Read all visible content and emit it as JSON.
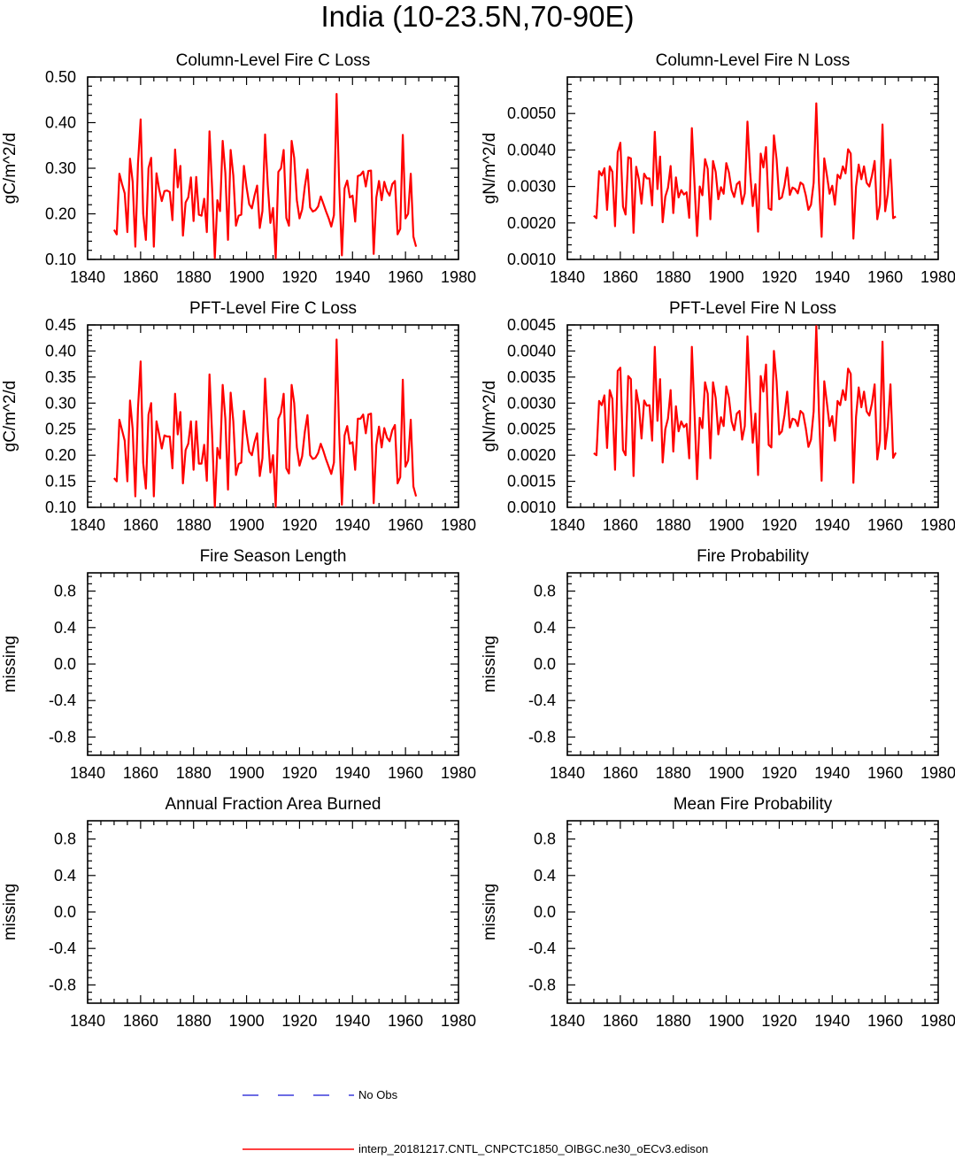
{
  "page": {
    "title": "India (10-23.5N,70-90E)"
  },
  "chart_data": [
    {
      "type": "line",
      "title": "Column-Level Fire C Loss",
      "ylabel": "gC/m^2/d",
      "xlim": [
        1840,
        1980
      ],
      "ylim": [
        0.1,
        0.5
      ],
      "xticks": [
        "1840",
        "1860",
        "1880",
        "1900",
        "1920",
        "1940",
        "1960",
        "1980"
      ],
      "yticks": [
        "0.10",
        "0.20",
        "0.30",
        "0.40",
        "0.50"
      ],
      "x_start": 1850,
      "series": [
        {
          "color": "#ff0000",
          "values": [
            0.165,
            0.155,
            0.288,
            0.265,
            0.245,
            0.16,
            0.321,
            0.27,
            0.128,
            0.31,
            0.407,
            0.2,
            0.143,
            0.3,
            0.323,
            0.128,
            0.289,
            0.254,
            0.228,
            0.25,
            0.251,
            0.248,
            0.186,
            0.341,
            0.258,
            0.305,
            0.152,
            0.225,
            0.236,
            0.28,
            0.184,
            0.281,
            0.198,
            0.196,
            0.233,
            0.16,
            0.381,
            0.254,
            0.103,
            0.23,
            0.206,
            0.36,
            0.29,
            0.143,
            0.34,
            0.284,
            0.174,
            0.196,
            0.198,
            0.305,
            0.258,
            0.221,
            0.212,
            0.24,
            0.262,
            0.169,
            0.206,
            0.374,
            0.264,
            0.18,
            0.213,
            0.103,
            0.292,
            0.3,
            0.34,
            0.191,
            0.174,
            0.36,
            0.323,
            0.23,
            0.19,
            0.21,
            0.26,
            0.297,
            0.214,
            0.205,
            0.208,
            0.216,
            0.238,
            0.222,
            0.205,
            0.19,
            0.172,
            0.197,
            0.463,
            0.26,
            0.109,
            0.256,
            0.273,
            0.236,
            0.24,
            0.183,
            0.283,
            0.285,
            0.293,
            0.26,
            0.294,
            0.295,
            0.112,
            0.236,
            0.272,
            0.23,
            0.27,
            0.25,
            0.24,
            0.265,
            0.272,
            0.155,
            0.167,
            0.373,
            0.19,
            0.2,
            0.288,
            0.15,
            0.128
          ]
        }
      ]
    },
    {
      "type": "line",
      "title": "Column-Level Fire N Loss",
      "ylabel": "gN/m^2/d",
      "xlim": [
        1840,
        1980
      ],
      "ylim": [
        0.001,
        0.006
      ],
      "xticks": [
        "1840",
        "1860",
        "1880",
        "1900",
        "1920",
        "1940",
        "1960",
        "1980"
      ],
      "yticks": [
        "0.0010",
        "0.0020",
        "0.0030",
        "0.0040",
        "0.0050"
      ],
      "x_start": 1850,
      "series": [
        {
          "color": "#ff0000",
          "values": [
            0.0022,
            0.00213,
            0.00342,
            0.0033,
            0.0035,
            0.00236,
            0.00355,
            0.0034,
            0.00191,
            0.00394,
            0.0042,
            0.00245,
            0.00223,
            0.0038,
            0.00377,
            0.00173,
            0.00354,
            0.0032,
            0.00253,
            0.00335,
            0.00322,
            0.00322,
            0.00248,
            0.0045,
            0.00293,
            0.00382,
            0.00202,
            0.00272,
            0.00296,
            0.00356,
            0.00227,
            0.00325,
            0.0027,
            0.0029,
            0.00278,
            0.00284,
            0.00214,
            0.0046,
            0.00306,
            0.00164,
            0.003,
            0.00276,
            0.00375,
            0.00348,
            0.0021,
            0.0037,
            0.0034,
            0.00265,
            0.00298,
            0.0028,
            0.00364,
            0.00338,
            0.0029,
            0.00271,
            0.00306,
            0.00313,
            0.00252,
            0.00281,
            0.00478,
            0.0034,
            0.00246,
            0.00306,
            0.00176,
            0.0039,
            0.00352,
            0.00408,
            0.0024,
            0.00236,
            0.0044,
            0.00375,
            0.00265,
            0.0027,
            0.00303,
            0.00352,
            0.00277,
            0.00297,
            0.00293,
            0.00281,
            0.00311,
            0.00305,
            0.00276,
            0.00236,
            0.0025,
            0.0031,
            0.00528,
            0.0031,
            0.00162,
            0.00377,
            0.0033,
            0.0028,
            0.00302,
            0.0025,
            0.00332,
            0.00322,
            0.00355,
            0.00336,
            0.00402,
            0.0039,
            0.00157,
            0.003,
            0.0036,
            0.0032,
            0.00355,
            0.0031,
            0.003,
            0.0033,
            0.0037,
            0.0021,
            0.0025,
            0.0047,
            0.00232,
            0.0028,
            0.00373,
            0.00213,
            0.00218
          ]
        }
      ]
    },
    {
      "type": "line",
      "title": "PFT-Level Fire C Loss",
      "ylabel": "gC/m^2/d",
      "xlim": [
        1840,
        1980
      ],
      "ylim": [
        0.1,
        0.45
      ],
      "xticks": [
        "1840",
        "1860",
        "1880",
        "1900",
        "1920",
        "1940",
        "1960",
        "1980"
      ],
      "yticks": [
        "0.10",
        "0.15",
        "0.20",
        "0.25",
        "0.30",
        "0.35",
        "0.40",
        "0.45"
      ],
      "x_start": 1850,
      "series": [
        {
          "color": "#ff0000",
          "values": [
            0.156,
            0.15,
            0.268,
            0.248,
            0.228,
            0.15,
            0.305,
            0.25,
            0.121,
            0.29,
            0.38,
            0.185,
            0.136,
            0.278,
            0.3,
            0.121,
            0.265,
            0.24,
            0.213,
            0.238,
            0.236,
            0.236,
            0.175,
            0.318,
            0.24,
            0.283,
            0.146,
            0.21,
            0.222,
            0.265,
            0.172,
            0.265,
            0.184,
            0.184,
            0.22,
            0.151,
            0.355,
            0.238,
            0.101,
            0.214,
            0.194,
            0.335,
            0.27,
            0.134,
            0.32,
            0.265,
            0.162,
            0.183,
            0.186,
            0.285,
            0.242,
            0.207,
            0.2,
            0.225,
            0.242,
            0.16,
            0.194,
            0.347,
            0.246,
            0.167,
            0.2,
            0.101,
            0.27,
            0.282,
            0.318,
            0.175,
            0.165,
            0.335,
            0.3,
            0.215,
            0.18,
            0.198,
            0.245,
            0.277,
            0.2,
            0.193,
            0.195,
            0.204,
            0.222,
            0.208,
            0.192,
            0.178,
            0.164,
            0.186,
            0.422,
            0.24,
            0.105,
            0.238,
            0.256,
            0.222,
            0.225,
            0.172,
            0.27,
            0.27,
            0.278,
            0.242,
            0.278,
            0.28,
            0.108,
            0.22,
            0.255,
            0.215,
            0.252,
            0.234,
            0.227,
            0.248,
            0.258,
            0.146,
            0.158,
            0.345,
            0.178,
            0.19,
            0.268,
            0.14,
            0.121
          ]
        }
      ]
    },
    {
      "type": "line",
      "title": "PFT-Level Fire N Loss",
      "ylabel": "gN/m^2/d",
      "xlim": [
        1840,
        1980
      ],
      "ylim": [
        0.001,
        0.0045
      ],
      "xticks": [
        "1840",
        "1860",
        "1880",
        "1900",
        "1920",
        "1940",
        "1960",
        "1980"
      ],
      "yticks": [
        "0.0010",
        "0.0015",
        "0.0020",
        "0.0025",
        "0.0030",
        "0.0035",
        "0.0040",
        "0.0045"
      ],
      "x_start": 1850,
      "series": [
        {
          "color": "#ff0000",
          "values": [
            0.00204,
            0.002,
            0.00304,
            0.00296,
            0.00315,
            0.00214,
            0.00325,
            0.00308,
            0.00172,
            0.00362,
            0.00368,
            0.0021,
            0.002,
            0.00352,
            0.00346,
            0.0016,
            0.00325,
            0.00296,
            0.00232,
            0.00305,
            0.00295,
            0.00296,
            0.00228,
            0.00408,
            0.00266,
            0.00346,
            0.00186,
            0.0025,
            0.0027,
            0.00325,
            0.00207,
            0.00294,
            0.00246,
            0.00265,
            0.00254,
            0.0026,
            0.00194,
            0.00408,
            0.0028,
            0.00154,
            0.00272,
            0.00252,
            0.0034,
            0.00318,
            0.00194,
            0.0034,
            0.0031,
            0.0024,
            0.00273,
            0.00256,
            0.00332,
            0.0031,
            0.00265,
            0.00248,
            0.0028,
            0.00285,
            0.0023,
            0.00256,
            0.00428,
            0.0031,
            0.00224,
            0.0028,
            0.00162,
            0.00352,
            0.00322,
            0.00374,
            0.0022,
            0.00215,
            0.004,
            0.00342,
            0.0024,
            0.00246,
            0.00277,
            0.00322,
            0.00253,
            0.0027,
            0.00268,
            0.00256,
            0.00285,
            0.0028,
            0.00252,
            0.00216,
            0.0023,
            0.00284,
            0.00448,
            0.00282,
            0.00151,
            0.00342,
            0.003,
            0.00256,
            0.00275,
            0.00228,
            0.00304,
            0.00296,
            0.00325,
            0.00306,
            0.00366,
            0.00356,
            0.00147,
            0.00274,
            0.0033,
            0.00292,
            0.00322,
            0.00284,
            0.00276,
            0.003,
            0.00336,
            0.00192,
            0.00228,
            0.00418,
            0.00212,
            0.00256,
            0.00336,
            0.00195,
            0.00205
          ]
        }
      ]
    },
    {
      "type": "line",
      "title": "Fire Season Length",
      "ylabel": "missing",
      "xlim": [
        1840,
        1980
      ],
      "ylim": [
        -1.0,
        1.0
      ],
      "xticks": [
        "1840",
        "1860",
        "1880",
        "1900",
        "1920",
        "1940",
        "1960",
        "1980"
      ],
      "yticks": [
        "-0.8",
        "-0.4",
        "0.0",
        "0.4",
        "0.8"
      ],
      "series": []
    },
    {
      "type": "line",
      "title": "Fire Probability",
      "ylabel": "missing",
      "xlim": [
        1840,
        1980
      ],
      "ylim": [
        -1.0,
        1.0
      ],
      "xticks": [
        "1840",
        "1860",
        "1880",
        "1900",
        "1920",
        "1940",
        "1960",
        "1980"
      ],
      "yticks": [
        "-0.8",
        "-0.4",
        "0.0",
        "0.4",
        "0.8"
      ],
      "series": []
    },
    {
      "type": "line",
      "title": "Annual Fraction Area Burned",
      "ylabel": "missing",
      "xlim": [
        1840,
        1980
      ],
      "ylim": [
        -1.0,
        1.0
      ],
      "xticks": [
        "1840",
        "1860",
        "1880",
        "1900",
        "1920",
        "1940",
        "1960",
        "1980"
      ],
      "yticks": [
        "-0.8",
        "-0.4",
        "0.0",
        "0.4",
        "0.8"
      ],
      "series": []
    },
    {
      "type": "line",
      "title": "Mean Fire Probability",
      "ylabel": "missing",
      "xlim": [
        1840,
        1980
      ],
      "ylim": [
        -1.0,
        1.0
      ],
      "xticks": [
        "1840",
        "1860",
        "1880",
        "1900",
        "1920",
        "1940",
        "1960",
        "1980"
      ],
      "yticks": [
        "-0.8",
        "-0.4",
        "0.0",
        "0.4",
        "0.8"
      ],
      "series": []
    }
  ],
  "legend": [
    {
      "label": "No Obs",
      "color": "#3b3bdc",
      "style": "dashed"
    },
    {
      "label": "interp_20181217.CNTL_CNPCTC1850_OIBGC.ne30_oECv3.edison",
      "color": "#ff0000",
      "style": "solid"
    }
  ]
}
